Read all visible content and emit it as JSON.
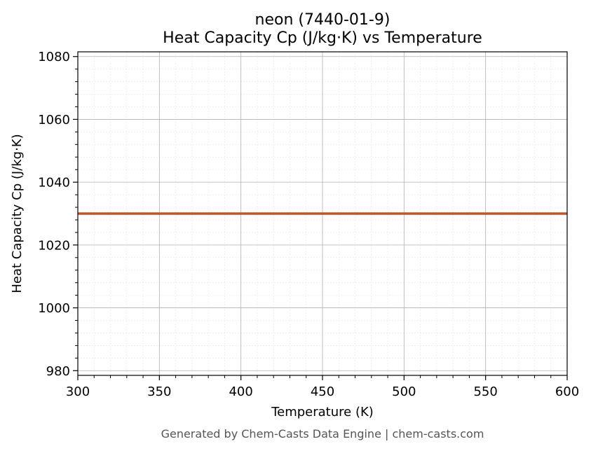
{
  "chart_data": {
    "type": "line",
    "title_line1": "neon (7440-01-9)",
    "title_line2": "Heat Capacity Cp (J/kg·K) vs Temperature",
    "xlabel": "Temperature (K)",
    "ylabel": "Heat Capacity Cp (J/kg·K)",
    "xlim": [
      300,
      600
    ],
    "ylim": [
      978.5,
      1081.5
    ],
    "x_ticks": [
      300,
      350,
      400,
      450,
      500,
      550,
      600
    ],
    "y_ticks": [
      980,
      1000,
      1020,
      1040,
      1060,
      1080
    ],
    "x_minor_step": 10,
    "y_minor_step": 4,
    "grid": true,
    "minor_grid": true,
    "series": [
      {
        "color": "#c0562a",
        "x": [
          300,
          600
        ],
        "y": [
          1030,
          1030
        ]
      }
    ]
  },
  "footer": "Generated by Chem-Casts Data Engine | chem-casts.com"
}
